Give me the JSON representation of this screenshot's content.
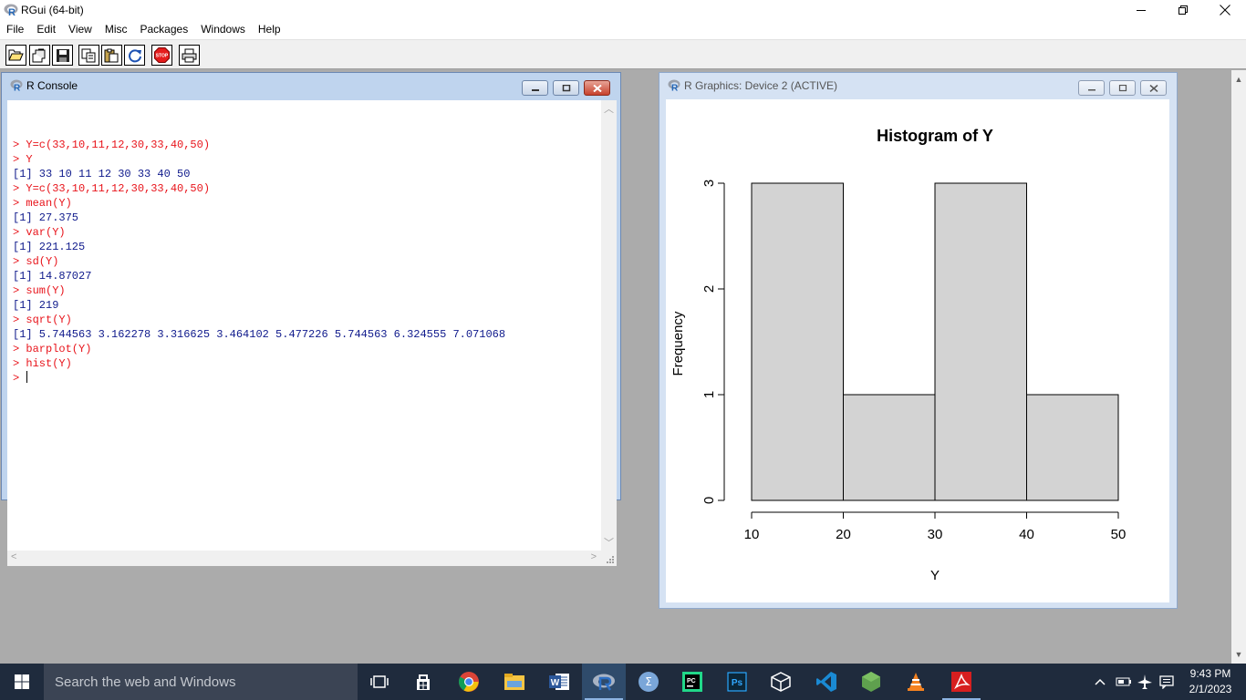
{
  "app": {
    "title": "RGui (64-bit)"
  },
  "menu": [
    "File",
    "Edit",
    "View",
    "Misc",
    "Packages",
    "Windows",
    "Help"
  ],
  "toolbar": {
    "buttons": [
      "open-script",
      "load-workspace",
      "save-workspace",
      "copy",
      "paste",
      "copy-paste",
      "stop",
      "print"
    ],
    "stop_label": "STOP"
  },
  "console": {
    "title": "R Console",
    "lines": [
      {
        "type": "input",
        "text": "> Y=c(33,10,11,12,30,33,40,50)"
      },
      {
        "type": "input",
        "text": "> Y"
      },
      {
        "type": "output",
        "text": "[1] 33 10 11 12 30 33 40 50"
      },
      {
        "type": "input",
        "text": "> Y=c(33,10,11,12,30,33,40,50)"
      },
      {
        "type": "input",
        "text": "> mean(Y)"
      },
      {
        "type": "output",
        "text": "[1] 27.375"
      },
      {
        "type": "input",
        "text": "> var(Y)"
      },
      {
        "type": "output",
        "text": "[1] 221.125"
      },
      {
        "type": "input",
        "text": "> sd(Y)"
      },
      {
        "type": "output",
        "text": "[1] 14.87027"
      },
      {
        "type": "input",
        "text": "> sum(Y)"
      },
      {
        "type": "output",
        "text": "[1] 219"
      },
      {
        "type": "input",
        "text": "> sqrt(Y)"
      },
      {
        "type": "output",
        "text": "[1] 5.744563 3.162278 3.316625 3.464102 5.477226 5.744563 6.324555 7.071068"
      },
      {
        "type": "input",
        "text": "> barplot(Y)"
      },
      {
        "type": "input",
        "text": "> hist(Y)"
      }
    ],
    "prompt": "> "
  },
  "graphics": {
    "title": "R Graphics: Device 2 (ACTIVE)"
  },
  "chart_data": {
    "type": "bar",
    "title": "Histogram of Y",
    "xlabel": "Y",
    "ylabel": "Frequency",
    "bins": [
      [
        10,
        20
      ],
      [
        20,
        30
      ],
      [
        30,
        40
      ],
      [
        40,
        50
      ]
    ],
    "values": [
      3,
      1,
      3,
      1
    ],
    "xticks": [
      10,
      20,
      30,
      40,
      50
    ],
    "yticks": [
      0,
      1,
      2,
      3
    ],
    "xlim": [
      10,
      50
    ],
    "ylim": [
      0,
      3
    ],
    "bar_color": "#d3d3d3",
    "grid": false
  },
  "taskbar": {
    "search_placeholder": "Search the web and Windows",
    "time": "9:43 PM",
    "date": "2/1/2023",
    "apps": [
      "task-view",
      "store",
      "chrome",
      "file-explorer",
      "word",
      "r-gui",
      "maxima",
      "pycharm",
      "photoshop",
      "virtualbox",
      "vscode",
      "nodejs",
      "vlc",
      "acrobat"
    ],
    "word_letter": "W",
    "pycharm_letters": "PC",
    "photoshop_letters": "Ps"
  }
}
